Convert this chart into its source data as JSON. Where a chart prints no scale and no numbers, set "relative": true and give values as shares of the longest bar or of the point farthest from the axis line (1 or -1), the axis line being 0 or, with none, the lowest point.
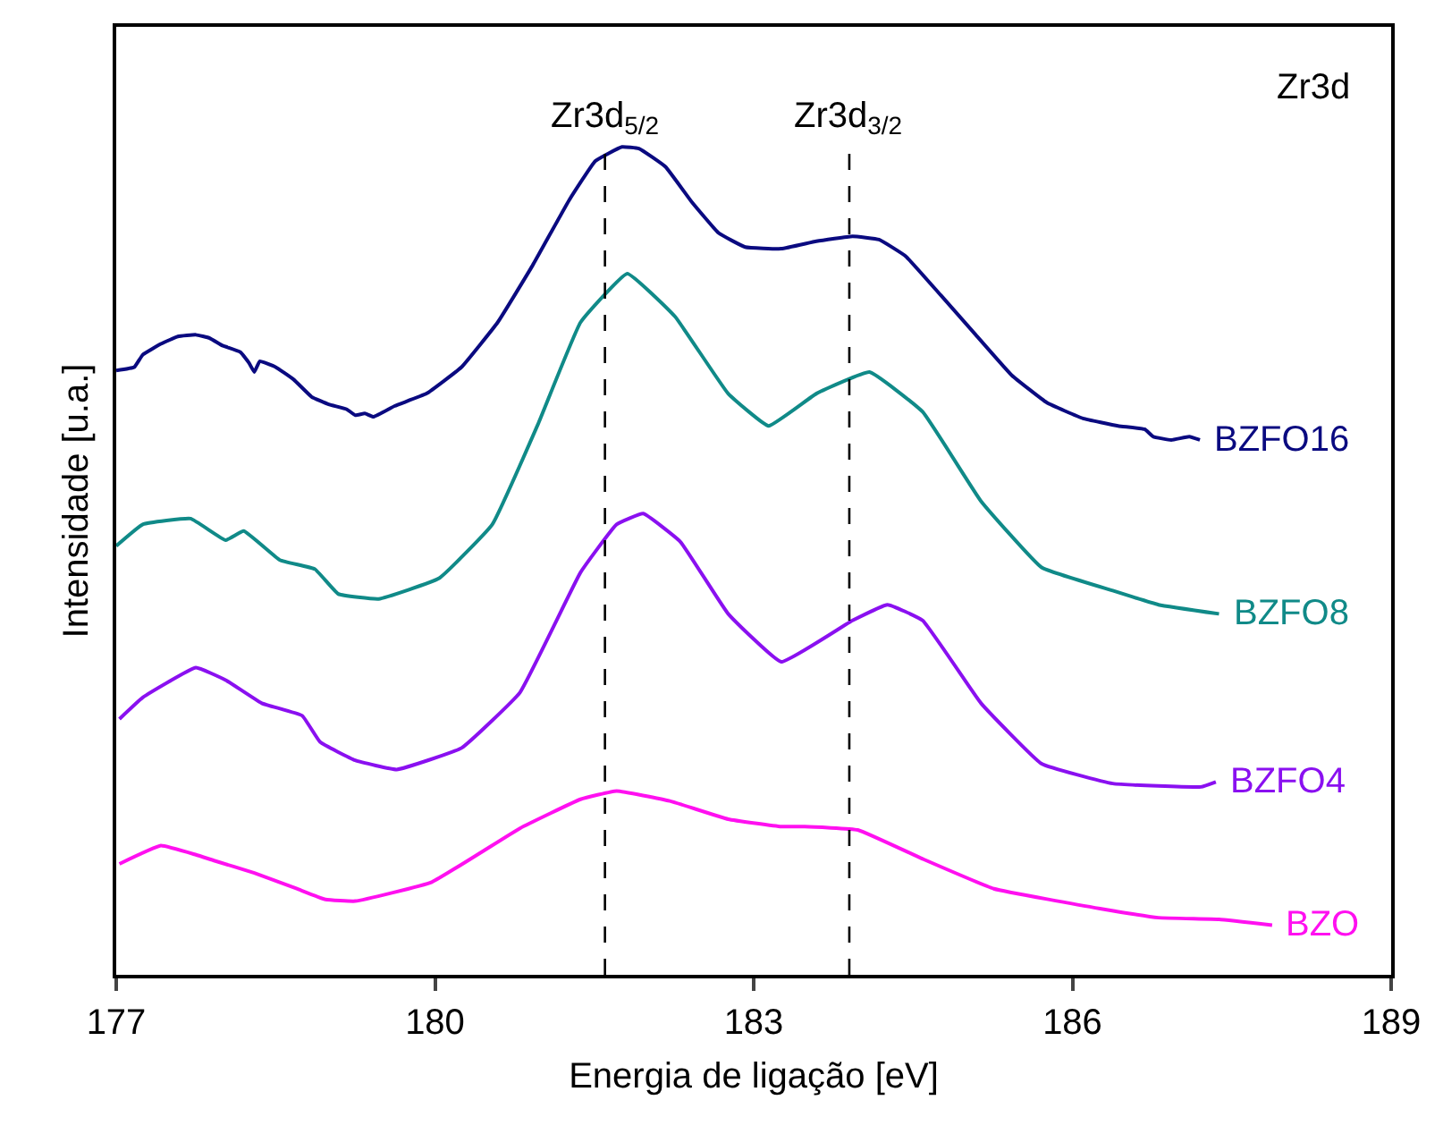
{
  "chart_data": {
    "type": "line",
    "relative": true,
    "xlabel": "Energia de ligação [eV]",
    "ylabel": "Intensidade [u.a.]",
    "xlim": [
      177,
      189
    ],
    "xticks": [
      177,
      180,
      183,
      186,
      189
    ],
    "legend": false,
    "line_style": "solid",
    "marker": "none",
    "annotations": [
      "Zr3d"
    ],
    "ref_lines": [
      {
        "axis": "x",
        "value": 181.6,
        "label": "Zr3d$_{5/2}$",
        "color": "#000000",
        "line_style": "dashed"
      },
      {
        "axis": "x",
        "value": 183.9,
        "label": "Zr3d$_{3/2}$",
        "color": "#000000",
        "line_style": "dashed"
      }
    ],
    "series": [
      {
        "name": "BZFO16",
        "color": "#0a0a80",
        "x": [
          177.0,
          177.17,
          177.25,
          177.42,
          177.58,
          177.75,
          177.88,
          178.0,
          178.17,
          178.25,
          178.3,
          178.35,
          178.5,
          178.67,
          178.84,
          179.0,
          179.17,
          179.25,
          179.34,
          179.42,
          179.62,
          179.92,
          180.25,
          180.59,
          180.92,
          181.26,
          181.51,
          181.76,
          181.92,
          182.17,
          182.42,
          182.67,
          182.92,
          183.26,
          183.59,
          183.93,
          184.18,
          184.43,
          184.76,
          185.09,
          185.43,
          185.76,
          186.1,
          186.43,
          186.68,
          186.76,
          186.93,
          187.1,
          187.2
        ],
        "values": [
          0.73,
          0.734,
          0.749,
          0.762,
          0.771,
          0.773,
          0.769,
          0.76,
          0.752,
          0.739,
          0.728,
          0.741,
          0.734,
          0.719,
          0.698,
          0.689,
          0.683,
          0.676,
          0.678,
          0.674,
          0.687,
          0.702,
          0.734,
          0.788,
          0.857,
          0.935,
          0.983,
          1.0,
          0.998,
          0.976,
          0.933,
          0.896,
          0.879,
          0.877,
          0.886,
          0.892,
          0.888,
          0.868,
          0.821,
          0.773,
          0.724,
          0.691,
          0.672,
          0.663,
          0.659,
          0.65,
          0.646,
          0.65,
          0.646
        ]
      },
      {
        "name": "BZFO8",
        "color": "#108a88",
        "x": [
          177.0,
          177.25,
          177.7,
          178.03,
          178.2,
          178.54,
          178.87,
          179.09,
          179.47,
          180.04,
          180.54,
          180.97,
          181.37,
          181.81,
          182.26,
          182.76,
          183.14,
          183.59,
          184.09,
          184.59,
          185.14,
          185.71,
          186.38,
          186.81,
          187.38
        ],
        "values": [
          0.518,
          0.544,
          0.551,
          0.525,
          0.536,
          0.501,
          0.49,
          0.46,
          0.454,
          0.479,
          0.544,
          0.665,
          0.788,
          0.847,
          0.795,
          0.702,
          0.663,
          0.702,
          0.728,
          0.68,
          0.572,
          0.492,
          0.464,
          0.447,
          0.436
        ]
      },
      {
        "name": "BZFO4",
        "color": "#8a10f0",
        "x": [
          177.03,
          177.25,
          177.75,
          178.03,
          178.37,
          178.75,
          178.92,
          179.25,
          179.64,
          180.25,
          180.8,
          181.37,
          181.71,
          181.96,
          182.31,
          182.76,
          183.26,
          183.93,
          184.26,
          184.59,
          185.14,
          185.71,
          186.38,
          187.21,
          187.35
        ],
        "values": [
          0.309,
          0.335,
          0.371,
          0.356,
          0.328,
          0.313,
          0.281,
          0.259,
          0.248,
          0.274,
          0.341,
          0.486,
          0.544,
          0.557,
          0.523,
          0.436,
          0.378,
          0.428,
          0.447,
          0.428,
          0.328,
          0.255,
          0.231,
          0.227,
          0.233
        ]
      },
      {
        "name": "BZO",
        "color": "#ff10f0",
        "x": [
          177.03,
          177.42,
          177.75,
          177.92,
          178.3,
          178.7,
          178.97,
          179.25,
          179.97,
          180.8,
          181.37,
          181.71,
          182.21,
          182.76,
          183.26,
          183.48,
          183.98,
          184.59,
          185.26,
          186.26,
          186.81,
          187.38,
          187.88
        ],
        "values": [
          0.134,
          0.156,
          0.145,
          0.138,
          0.123,
          0.104,
          0.091,
          0.089,
          0.112,
          0.177,
          0.212,
          0.222,
          0.21,
          0.188,
          0.179,
          0.179,
          0.175,
          0.14,
          0.104,
          0.08,
          0.069,
          0.067,
          0.06
        ]
      }
    ]
  }
}
